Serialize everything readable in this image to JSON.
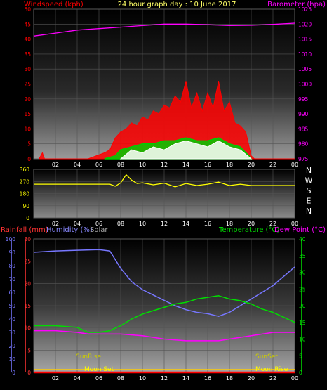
{
  "colors": {
    "wind_speed": "#ff0000",
    "wind_gust": "#ffffff",
    "wind_avg": "#00cc00",
    "barometer": "#ff00ff",
    "direction": "#ffff00",
    "rainfall": "#ff0000",
    "humidity": "#7777ff",
    "solar": "#aaaaaa",
    "temperature": "#00dd00",
    "dew_point": "#ff00ff",
    "sun": "#cccc00",
    "moon": "#ffff00",
    "axis_text": "#ffffff"
  },
  "chart_data": [
    {
      "id": "wind-baro",
      "type": "line",
      "title": "24 hour graph day : 10 June 2017",
      "left_label": "Windspeed (kph)",
      "right_label": "Barometer (hpa)",
      "x_ticks": [
        "02",
        "04",
        "06",
        "08",
        "10",
        "12",
        "14",
        "16",
        "18",
        "20",
        "22",
        "00"
      ],
      "x_range": [
        0,
        24
      ],
      "y_left_ticks": [
        "0",
        "5",
        "10",
        "15",
        "20",
        "25",
        "30",
        "35",
        "40",
        "45",
        "50"
      ],
      "y_left_range": [
        0,
        50
      ],
      "y_right_ticks": [
        "975",
        "980",
        "985",
        "990",
        "995",
        "1000",
        "1005",
        "1010",
        "1015",
        "1020",
        "1025"
      ],
      "y_right_range": [
        975,
        1025
      ],
      "series": [
        {
          "key": "wind_speed",
          "x": [
            0.5,
            0.8,
            1.0,
            3.0,
            5.0,
            6.5,
            7.0,
            7.5,
            8.0,
            8.5,
            9.0,
            9.5,
            10.0,
            10.5,
            11.0,
            11.5,
            12.0,
            12.5,
            13.0,
            13.5,
            14.0,
            14.5,
            15.0,
            15.5,
            16.0,
            16.5,
            17.0,
            17.5,
            18.0,
            18.5,
            19.0,
            19.5,
            20.0,
            20.3,
            21.0,
            22.0,
            23.0,
            24.0
          ],
          "y": [
            0,
            2,
            0,
            0,
            0,
            2,
            3,
            7,
            9,
            10,
            12,
            11,
            14,
            13,
            16,
            15,
            18,
            17,
            21,
            19,
            26,
            17,
            22,
            16,
            22,
            17,
            26,
            16,
            19,
            12,
            11,
            9,
            1,
            0,
            0,
            0,
            0,
            0
          ]
        },
        {
          "key": "wind_avg",
          "x": [
            6.5,
            7.5,
            8.0,
            9.0,
            10.0,
            11.0,
            12.0,
            13.0,
            14.0,
            15.0,
            16.0,
            17.0,
            18.0,
            19.0,
            19.8,
            20.0
          ],
          "y": [
            0,
            1,
            3,
            4,
            5,
            5,
            6,
            6,
            7,
            6,
            6,
            7,
            5,
            4,
            1,
            0
          ]
        },
        {
          "key": "wind_gust",
          "x": [
            8.0,
            9.0,
            10.0,
            11.0,
            12.0,
            13.0,
            14.0,
            15.0,
            16.0,
            17.0,
            18.0,
            19.0,
            20.0
          ],
          "y": [
            0,
            3,
            2,
            4,
            3,
            5,
            6,
            5,
            4,
            6,
            4,
            3,
            0
          ]
        },
        {
          "key": "barometer",
          "axis": "right",
          "x": [
            0,
            2,
            4,
            6,
            8,
            10,
            12,
            14,
            16,
            18,
            20,
            22,
            24
          ],
          "y": [
            1016,
            1017,
            1018,
            1018.5,
            1019,
            1019.5,
            1020,
            1020,
            1019.8,
            1019.5,
            1019.6,
            1019.9,
            1020.3
          ]
        }
      ]
    },
    {
      "id": "direction",
      "type": "line",
      "x_ticks": [
        "02",
        "04",
        "06",
        "08",
        "10",
        "12",
        "14",
        "16",
        "18",
        "20",
        "22",
        "00"
      ],
      "x_range": [
        0,
        24
      ],
      "y_ticks": [
        "0",
        "90",
        "180",
        "270",
        "360"
      ],
      "y_range": [
        0,
        360
      ],
      "compass_labels": [
        "N",
        "W",
        "S",
        "E",
        "N"
      ],
      "series": [
        {
          "key": "direction",
          "x": [
            0,
            7.0,
            7.5,
            8.0,
            8.5,
            9.0,
            9.5,
            10.0,
            11.0,
            12.0,
            13.0,
            14.0,
            15.0,
            16.0,
            17.0,
            18.0,
            19.0,
            20.0,
            24.0
          ],
          "y": [
            250,
            250,
            235,
            260,
            320,
            280,
            255,
            260,
            245,
            258,
            230,
            255,
            240,
            250,
            265,
            240,
            250,
            240,
            240
          ]
        }
      ]
    },
    {
      "id": "temp-hum",
      "type": "line",
      "left_label_1": "Rainfall (mm)",
      "left_label_2": "Humidity (%)",
      "left_label_3": "Solar",
      "right_label_1": "Temperature (°C)",
      "right_label_2": "Dew Point (°C)",
      "x_ticks": [
        "02",
        "04",
        "06",
        "08",
        "10",
        "12",
        "14",
        "16",
        "18",
        "20",
        "22",
        "00"
      ],
      "x_range": [
        0,
        24
      ],
      "y_humidity_ticks": [
        "0",
        "10",
        "20",
        "30",
        "40",
        "50",
        "60",
        "70",
        "80",
        "90",
        "100"
      ],
      "y_humidity_range": [
        0,
        100
      ],
      "y_rain_ticks": [
        "0",
        "5",
        "10",
        "15",
        "20",
        "25",
        "30"
      ],
      "y_rain_range": [
        0,
        30
      ],
      "y_temp_ticks": [
        "0",
        "5",
        "10",
        "15",
        "20",
        "25",
        "30",
        "35",
        "40"
      ],
      "y_temp_range": [
        0,
        40
      ],
      "events": {
        "sunrise": "SunRise",
        "sunset": "SunSet",
        "moonset": "Moon Set",
        "moonrise": "Moon Rise"
      },
      "series": [
        {
          "key": "humidity",
          "axis": "left",
          "x": [
            0,
            2,
            4,
            6,
            7,
            8,
            9,
            10,
            11,
            12,
            13,
            14,
            15,
            16,
            17,
            18,
            19,
            20,
            21,
            22,
            23,
            24
          ],
          "y": [
            90,
            91,
            91.5,
            92,
            91,
            78,
            68,
            62,
            58,
            54,
            50,
            47,
            45,
            44,
            42,
            45,
            50,
            55,
            60,
            65,
            72,
            79
          ]
        },
        {
          "key": "temperature",
          "axis": "right",
          "x": [
            0,
            2,
            4,
            5,
            6,
            7,
            8,
            9,
            10,
            11,
            12,
            13,
            14,
            15,
            16,
            17,
            18,
            19,
            20,
            21,
            22,
            23,
            24
          ],
          "y": [
            14,
            14,
            13.5,
            12,
            12,
            12.5,
            14,
            16,
            17.5,
            18.5,
            19.5,
            20.5,
            21,
            22,
            22.5,
            23,
            22,
            21.5,
            20.5,
            19,
            18,
            16.5,
            15
          ]
        },
        {
          "key": "dew_point",
          "axis": "right",
          "x": [
            0,
            2,
            4,
            5,
            6,
            7,
            8,
            10,
            12,
            14,
            16,
            17,
            18,
            20,
            22,
            24
          ],
          "y": [
            12.5,
            12.5,
            12,
            11.5,
            11.5,
            11.5,
            11.5,
            11,
            10,
            9.5,
            9.5,
            9.5,
            10,
            11,
            12,
            12
          ]
        },
        {
          "key": "rainfall",
          "axis": "rain",
          "x": [
            0,
            24
          ],
          "y": [
            0,
            0
          ]
        }
      ]
    }
  ]
}
